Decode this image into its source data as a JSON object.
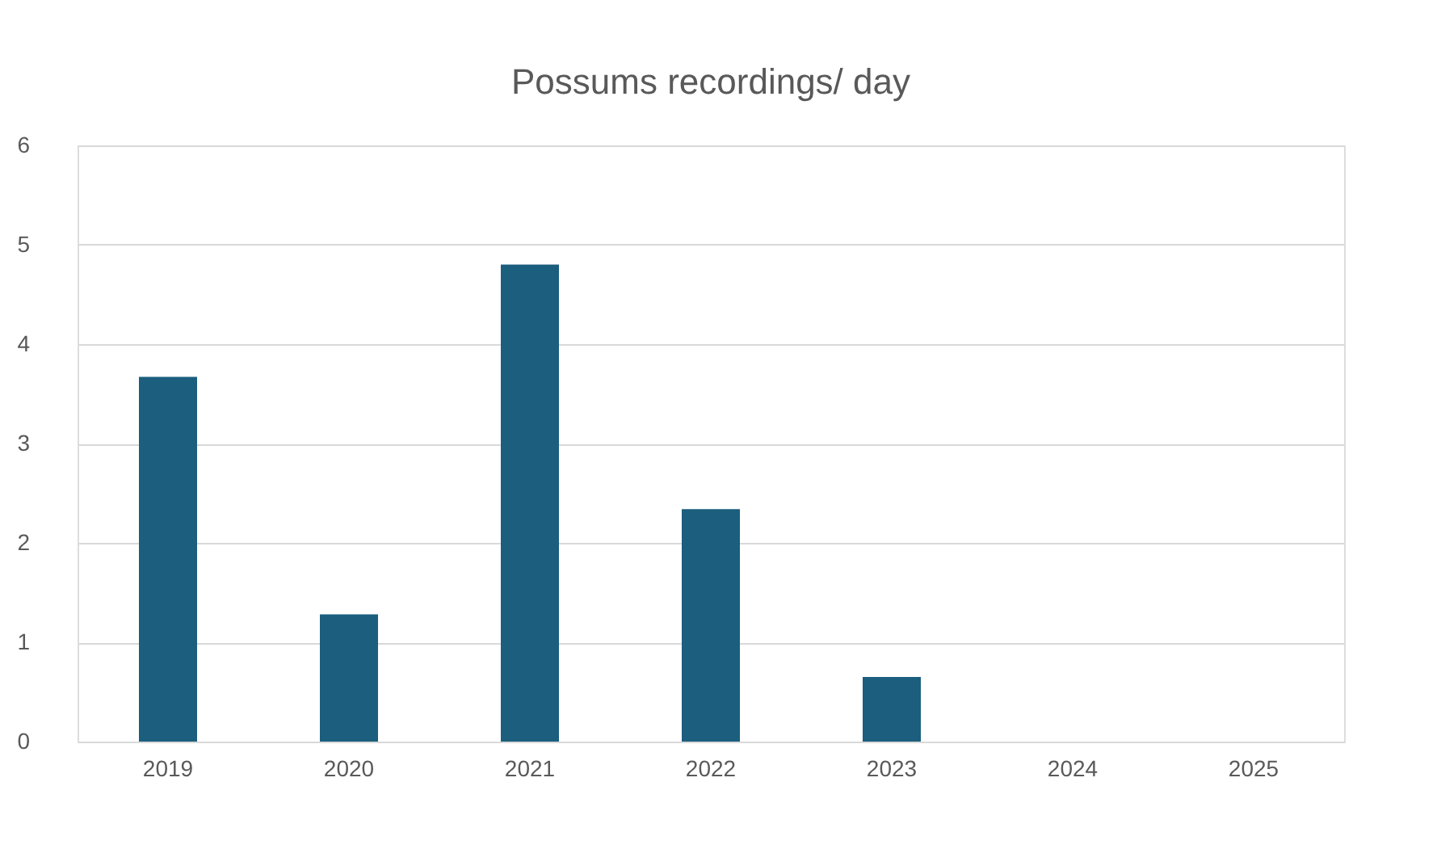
{
  "chart_data": {
    "type": "bar",
    "title": "Possums recordings/ day",
    "categories": [
      "2019",
      "2020",
      "2021",
      "2022",
      "2023",
      "2024",
      "2025"
    ],
    "values": [
      3.67,
      1.28,
      4.8,
      2.34,
      0.65,
      0,
      0
    ],
    "color": "#1b5e7e",
    "ylim": [
      0,
      6
    ],
    "yticks": [
      0,
      1,
      2,
      3,
      4,
      5,
      6
    ],
    "grid": "y"
  }
}
